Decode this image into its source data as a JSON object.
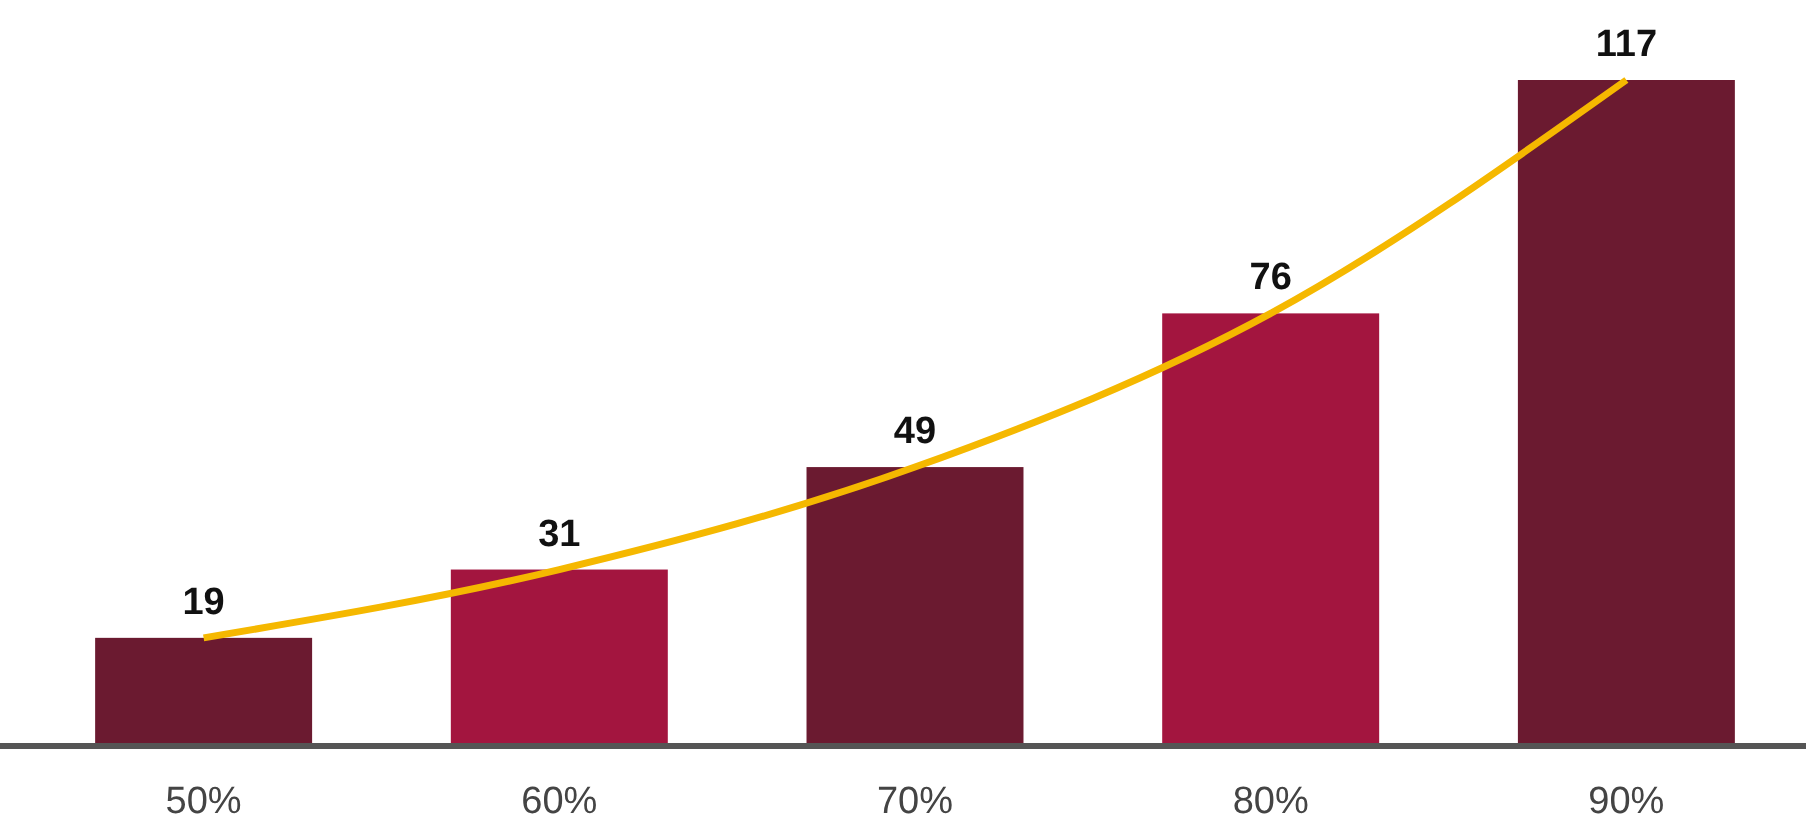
{
  "chart_data": {
    "type": "bar",
    "categories": [
      "50%",
      "60%",
      "70%",
      "80%",
      "90%"
    ],
    "grid": false,
    "tick_labels": "x",
    "series": [
      {
        "values": [
          19,
          31,
          49,
          76,
          117
        ],
        "value_labels": [
          "19",
          "31",
          "49",
          "76",
          "117"
        ],
        "colors": [
          "#6b1a30",
          "#a3153f",
          "#6b1a30",
          "#a3153f",
          "#6b1a30"
        ]
      },
      {
        "type": "line",
        "values": [
          19,
          31,
          49,
          76,
          117
        ],
        "color": "#f5b800",
        "line_style": "solid",
        "marker": "none"
      }
    ]
  }
}
